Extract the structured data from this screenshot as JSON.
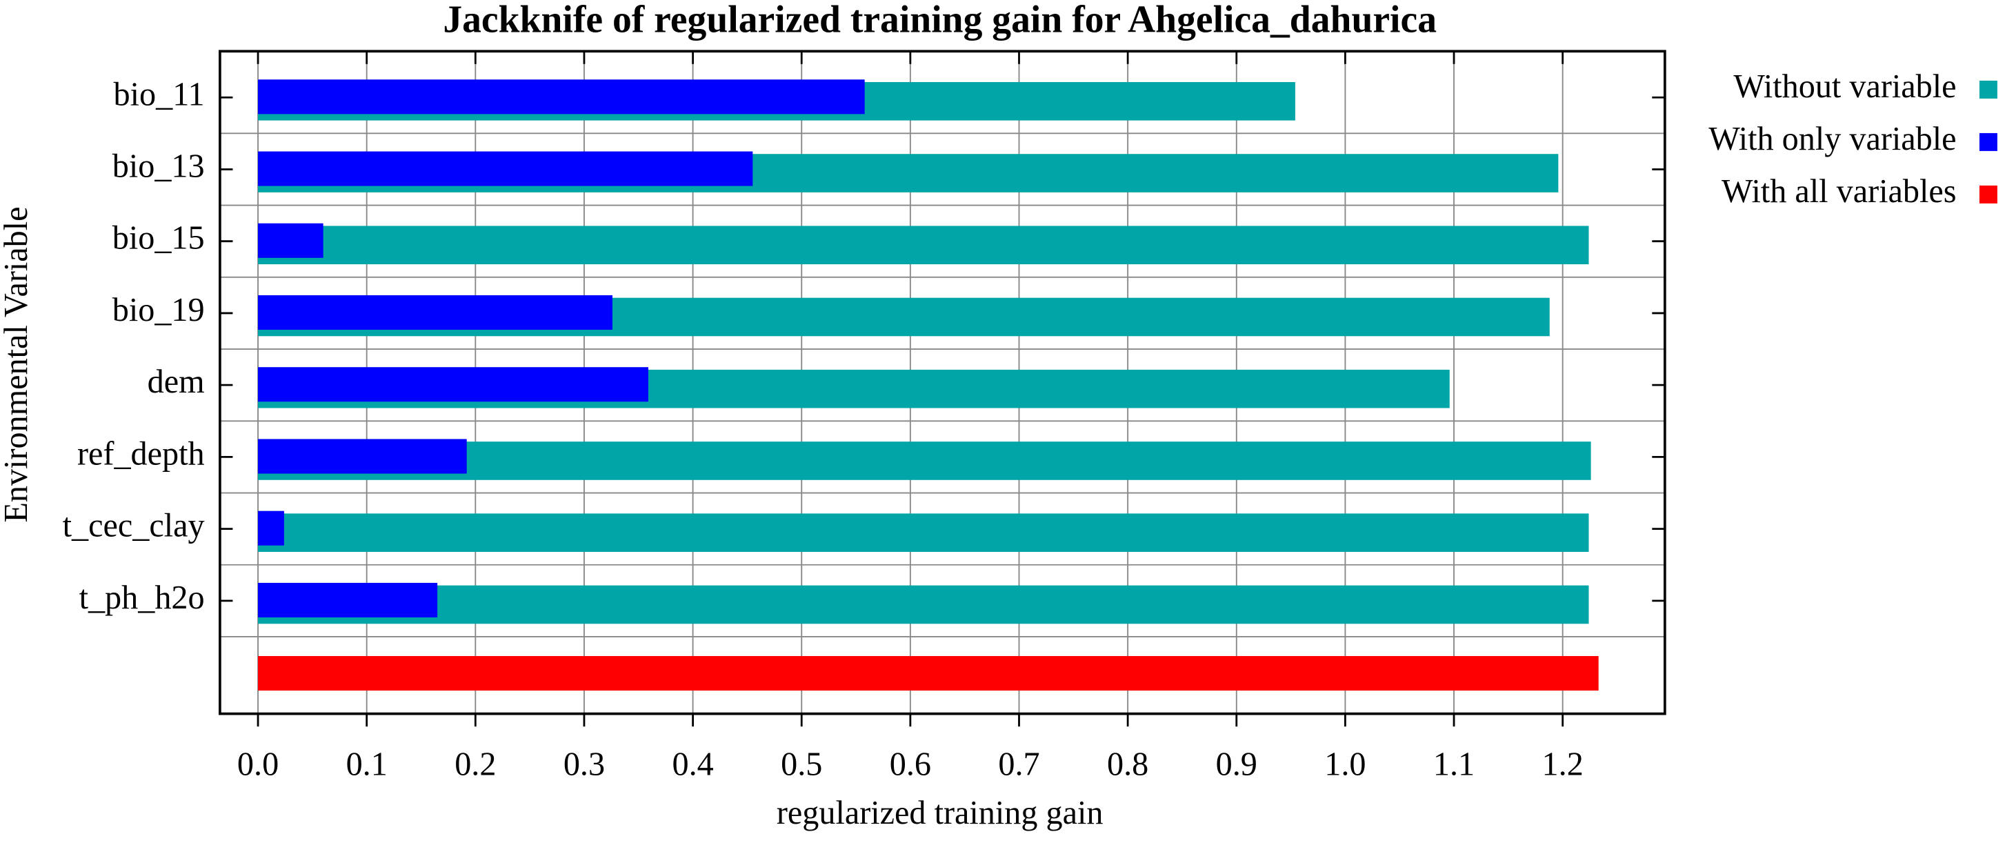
{
  "chart_data": {
    "type": "bar",
    "orientation": "horizontal",
    "title": "Jackknife of regularized training gain for Ahgelica_dahurica",
    "x_label": "regularized training gain",
    "y_label": "Environmental Variable",
    "categories": [
      "bio_11",
      "bio_13",
      "bio_15",
      "bio_19",
      "dem",
      "ref_depth",
      "t_cec_clay",
      "t_ph_h2o",
      null
    ],
    "series": [
      {
        "name": "Without variable",
        "color": "#00a5a8",
        "values": [
          0.954,
          1.196,
          1.224,
          1.188,
          1.096,
          1.226,
          1.224,
          1.224,
          null
        ]
      },
      {
        "name": "With only variable",
        "color": "#0000ff",
        "values": [
          0.558,
          0.455,
          0.06,
          0.326,
          0.359,
          0.192,
          0.024,
          0.165,
          null
        ]
      },
      {
        "name": "With all variables",
        "color": "#ff0000",
        "values": [
          null,
          null,
          null,
          null,
          null,
          null,
          null,
          null,
          1.233
        ]
      }
    ],
    "xlim": [
      -0.035,
      1.294
    ],
    "xticks": [
      {
        "value": 0,
        "label": "0.0"
      },
      0.1,
      0.2,
      0.3,
      0.4,
      0.5,
      0.6,
      0.7,
      0.8,
      0.9,
      {
        "value": 1,
        "label": "1.0"
      },
      1.1,
      1.2
    ],
    "grid": true,
    "legend": "right"
  }
}
